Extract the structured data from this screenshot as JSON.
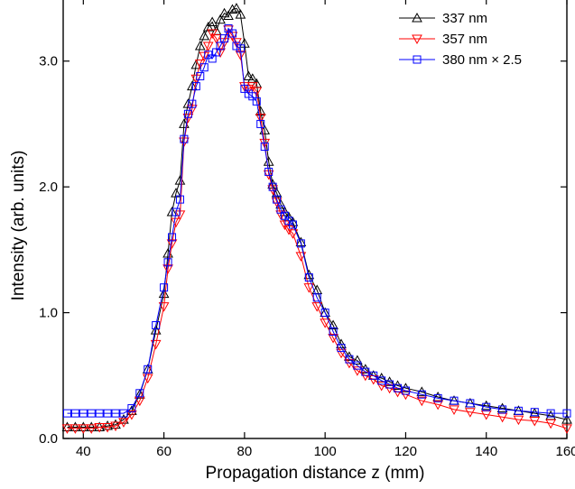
{
  "chart_data": {
    "type": "line",
    "title": "",
    "xlabel": "Propagation distance z (mm)",
    "ylabel": "Intensity (arb. units)",
    "xlim": [
      35,
      160
    ],
    "ylim": [
      0,
      3.5
    ],
    "xticks": [
      40,
      60,
      80,
      100,
      120,
      140,
      160
    ],
    "xtick_labels": [
      "40",
      "60",
      "80",
      "100",
      "120",
      "140",
      "160"
    ],
    "yticks": [
      0,
      1,
      2,
      3
    ],
    "ytick_labels": [
      "0.0",
      "1.0",
      "2.0",
      "3.0"
    ],
    "grid": false,
    "legend_position": "top-right",
    "series": [
      {
        "name": "337 nm",
        "color": "#000000",
        "marker": "triangle-up",
        "points": [
          [
            36,
            0.09
          ],
          [
            38,
            0.09
          ],
          [
            40,
            0.09
          ],
          [
            42,
            0.09
          ],
          [
            44,
            0.09
          ],
          [
            46,
            0.1
          ],
          [
            48,
            0.11
          ],
          [
            50,
            0.15
          ],
          [
            52,
            0.22
          ],
          [
            54,
            0.35
          ],
          [
            56,
            0.55
          ],
          [
            58,
            0.86
          ],
          [
            60,
            1.15
          ],
          [
            61,
            1.47
          ],
          [
            62,
            1.8
          ],
          [
            63,
            1.95
          ],
          [
            64,
            2.05
          ],
          [
            65,
            2.5
          ],
          [
            66,
            2.66
          ],
          [
            67,
            2.8
          ],
          [
            68,
            2.97
          ],
          [
            69,
            3.12
          ],
          [
            70,
            3.2
          ],
          [
            71,
            3.27
          ],
          [
            72,
            3.31
          ],
          [
            73,
            3.24
          ],
          [
            74,
            3.33
          ],
          [
            75,
            3.38
          ],
          [
            76,
            3.36
          ],
          [
            77,
            3.41
          ],
          [
            78,
            3.42
          ],
          [
            79,
            3.37
          ],
          [
            80,
            3.14
          ],
          [
            81,
            2.88
          ],
          [
            82,
            2.86
          ],
          [
            83,
            2.82
          ],
          [
            84,
            2.6
          ],
          [
            85,
            2.45
          ],
          [
            86,
            2.2
          ],
          [
            87,
            2.02
          ],
          [
            88,
            1.95
          ],
          [
            89,
            1.86
          ],
          [
            90,
            1.8
          ],
          [
            91,
            1.76
          ],
          [
            92,
            1.72
          ],
          [
            94,
            1.56
          ],
          [
            96,
            1.3
          ],
          [
            98,
            1.18
          ],
          [
            100,
            1.0
          ],
          [
            102,
            0.9
          ],
          [
            104,
            0.75
          ],
          [
            106,
            0.65
          ],
          [
            108,
            0.62
          ],
          [
            110,
            0.55
          ],
          [
            112,
            0.5
          ],
          [
            114,
            0.48
          ],
          [
            116,
            0.45
          ],
          [
            118,
            0.42
          ],
          [
            120,
            0.4
          ],
          [
            124,
            0.37
          ],
          [
            128,
            0.33
          ],
          [
            132,
            0.3
          ],
          [
            136,
            0.28
          ],
          [
            140,
            0.26
          ],
          [
            144,
            0.24
          ],
          [
            148,
            0.22
          ],
          [
            152,
            0.2
          ],
          [
            156,
            0.18
          ],
          [
            160,
            0.15
          ]
        ]
      },
      {
        "name": "357 nm",
        "color": "#ff0000",
        "marker": "triangle-down",
        "points": [
          [
            36,
            0.08
          ],
          [
            38,
            0.08
          ],
          [
            40,
            0.08
          ],
          [
            42,
            0.08
          ],
          [
            44,
            0.09
          ],
          [
            46,
            0.09
          ],
          [
            48,
            0.1
          ],
          [
            50,
            0.13
          ],
          [
            52,
            0.19
          ],
          [
            54,
            0.3
          ],
          [
            56,
            0.48
          ],
          [
            58,
            0.75
          ],
          [
            60,
            1.05
          ],
          [
            61,
            1.35
          ],
          [
            62,
            1.55
          ],
          [
            63,
            1.72
          ],
          [
            64,
            1.78
          ],
          [
            65,
            2.36
          ],
          [
            66,
            2.55
          ],
          [
            67,
            2.62
          ],
          [
            68,
            2.86
          ],
          [
            69,
            2.98
          ],
          [
            70,
            3.04
          ],
          [
            71,
            3.12
          ],
          [
            72,
            3.22
          ],
          [
            73,
            3.18
          ],
          [
            74,
            3.07
          ],
          [
            75,
            3.15
          ],
          [
            76,
            3.25
          ],
          [
            77,
            3.2
          ],
          [
            78,
            3.15
          ],
          [
            79,
            3.05
          ],
          [
            80,
            2.8
          ],
          [
            81,
            2.78
          ],
          [
            82,
            2.8
          ],
          [
            83,
            2.76
          ],
          [
            84,
            2.55
          ],
          [
            85,
            2.35
          ],
          [
            86,
            2.1
          ],
          [
            87,
            1.98
          ],
          [
            88,
            1.88
          ],
          [
            89,
            1.78
          ],
          [
            90,
            1.7
          ],
          [
            91,
            1.66
          ],
          [
            92,
            1.63
          ],
          [
            94,
            1.45
          ],
          [
            96,
            1.2
          ],
          [
            98,
            1.05
          ],
          [
            100,
            0.92
          ],
          [
            102,
            0.8
          ],
          [
            104,
            0.68
          ],
          [
            106,
            0.6
          ],
          [
            108,
            0.54
          ],
          [
            110,
            0.5
          ],
          [
            112,
            0.47
          ],
          [
            114,
            0.42
          ],
          [
            116,
            0.4
          ],
          [
            118,
            0.37
          ],
          [
            120,
            0.35
          ],
          [
            124,
            0.3
          ],
          [
            128,
            0.27
          ],
          [
            132,
            0.23
          ],
          [
            136,
            0.21
          ],
          [
            140,
            0.19
          ],
          [
            144,
            0.17
          ],
          [
            148,
            0.15
          ],
          [
            152,
            0.14
          ],
          [
            156,
            0.12
          ],
          [
            160,
            0.08
          ]
        ]
      },
      {
        "name": "380 nm × 2.5",
        "color": "#0000ff",
        "marker": "square",
        "points": [
          [
            36,
            0.2
          ],
          [
            38,
            0.2
          ],
          [
            40,
            0.2
          ],
          [
            42,
            0.2
          ],
          [
            44,
            0.2
          ],
          [
            46,
            0.2
          ],
          [
            48,
            0.2
          ],
          [
            50,
            0.2
          ],
          [
            52,
            0.24
          ],
          [
            54,
            0.36
          ],
          [
            56,
            0.55
          ],
          [
            58,
            0.9
          ],
          [
            60,
            1.2
          ],
          [
            61,
            1.4
          ],
          [
            62,
            1.6
          ],
          [
            63,
            1.8
          ],
          [
            64,
            1.9
          ],
          [
            65,
            2.38
          ],
          [
            66,
            2.58
          ],
          [
            67,
            2.66
          ],
          [
            68,
            2.8
          ],
          [
            69,
            2.88
          ],
          [
            70,
            2.95
          ],
          [
            71,
            3.05
          ],
          [
            72,
            3.02
          ],
          [
            73,
            3.07
          ],
          [
            74,
            3.12
          ],
          [
            75,
            3.18
          ],
          [
            76,
            3.26
          ],
          [
            77,
            3.22
          ],
          [
            78,
            3.12
          ],
          [
            79,
            3.1
          ],
          [
            80,
            2.78
          ],
          [
            81,
            2.74
          ],
          [
            82,
            2.72
          ],
          [
            83,
            2.68
          ],
          [
            84,
            2.5
          ],
          [
            85,
            2.32
          ],
          [
            86,
            2.12
          ],
          [
            87,
            2.0
          ],
          [
            88,
            1.9
          ],
          [
            89,
            1.82
          ],
          [
            90,
            1.77
          ],
          [
            91,
            1.73
          ],
          [
            92,
            1.7
          ],
          [
            94,
            1.55
          ],
          [
            96,
            1.28
          ],
          [
            98,
            1.12
          ],
          [
            100,
            1.0
          ],
          [
            102,
            0.85
          ],
          [
            104,
            0.72
          ],
          [
            106,
            0.63
          ],
          [
            108,
            0.58
          ],
          [
            110,
            0.53
          ],
          [
            112,
            0.5
          ],
          [
            114,
            0.46
          ],
          [
            116,
            0.43
          ],
          [
            118,
            0.4
          ],
          [
            120,
            0.38
          ],
          [
            124,
            0.35
          ],
          [
            128,
            0.32
          ],
          [
            132,
            0.3
          ],
          [
            136,
            0.28
          ],
          [
            140,
            0.25
          ],
          [
            144,
            0.23
          ],
          [
            148,
            0.22
          ],
          [
            152,
            0.21
          ],
          [
            156,
            0.2
          ],
          [
            160,
            0.2
          ]
        ]
      }
    ]
  }
}
